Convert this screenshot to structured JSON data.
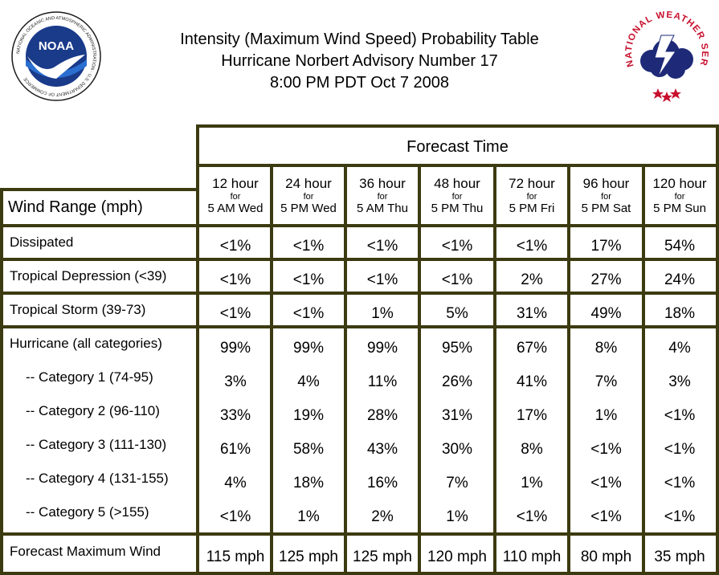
{
  "title_lines": [
    "Intensity (Maximum Wind Speed) Probability Table",
    "Hurricane Norbert Advisory Number 17",
    "8:00 PM PDT Oct 7 2008"
  ],
  "logos": {
    "noaa": {
      "center_text": "NOAA",
      "ring_text": "NATIONAL OCEANIC AND ATMOSPHERIC ADMINISTRATION · U.S. DEPARTMENT OF COMMERCE",
      "colors": {
        "ring": "#ffffff",
        "disk_top": "#1a3a8a",
        "disk_bottom": "#2a6fd0",
        "bird": "#ffffff"
      }
    },
    "nws": {
      "ring_text": "NATIONAL WEATHER SERVICE",
      "colors": {
        "ring_text": "#c8102e",
        "cloud": "#1e2a78",
        "bolt": "#ffffff",
        "stars": "#c8102e"
      }
    }
  },
  "table": {
    "forecast_time_label": "Forecast Time",
    "row_header_label": "Wind Range (mph)",
    "columns": [
      {
        "hour": "12 hour",
        "for": "for",
        "time": "5 AM Wed"
      },
      {
        "hour": "24 hour",
        "for": "for",
        "time": "5 PM Wed"
      },
      {
        "hour": "36 hour",
        "for": "for",
        "time": "5 AM Thu"
      },
      {
        "hour": "48 hour",
        "for": "for",
        "time": "5 PM Thu"
      },
      {
        "hour": "72 hour",
        "for": "for",
        "time": "5 PM Fri"
      },
      {
        "hour": "96 hour",
        "for": "for",
        "time": "5 PM Sat"
      },
      {
        "hour": "120 hour",
        "for": "for",
        "time": "5 PM Sun"
      }
    ],
    "rows": [
      {
        "label": "Dissipated",
        "values": [
          "<1%",
          "<1%",
          "<1%",
          "<1%",
          "<1%",
          "17%",
          "54%"
        ]
      },
      {
        "label": "Tropical Depression (<39)",
        "values": [
          "<1%",
          "<1%",
          "<1%",
          "<1%",
          "2%",
          "27%",
          "24%"
        ]
      },
      {
        "label": "Tropical Storm (39-73)",
        "values": [
          "<1%",
          "<1%",
          "1%",
          "5%",
          "31%",
          "49%",
          "18%"
        ]
      },
      {
        "label": "Hurricane (all categories)",
        "values": [
          "99%",
          "99%",
          "99%",
          "95%",
          "67%",
          "8%",
          "4%"
        ]
      },
      {
        "label": "-- Category 1 (74-95)",
        "values": [
          "3%",
          "4%",
          "11%",
          "26%",
          "41%",
          "7%",
          "3%"
        ]
      },
      {
        "label": "-- Category 2 (96-110)",
        "values": [
          "33%",
          "19%",
          "28%",
          "31%",
          "17%",
          "1%",
          "<1%"
        ]
      },
      {
        "label": "-- Category 3 (111-130)",
        "values": [
          "61%",
          "58%",
          "43%",
          "30%",
          "8%",
          "<1%",
          "<1%"
        ]
      },
      {
        "label": "-- Category 4 (131-155)",
        "values": [
          "4%",
          "18%",
          "16%",
          "7%",
          "1%",
          "<1%",
          "<1%"
        ]
      },
      {
        "label": "-- Category 5 (>155)",
        "values": [
          "<1%",
          "1%",
          "2%",
          "1%",
          "<1%",
          "<1%",
          "<1%"
        ]
      }
    ],
    "max_wind": {
      "label": "Forecast Maximum Wind",
      "values": [
        "115 mph",
        "125 mph",
        "125 mph",
        "120 mph",
        "110 mph",
        "80 mph",
        "35 mph"
      ]
    },
    "border_color": "#3c3a10"
  }
}
